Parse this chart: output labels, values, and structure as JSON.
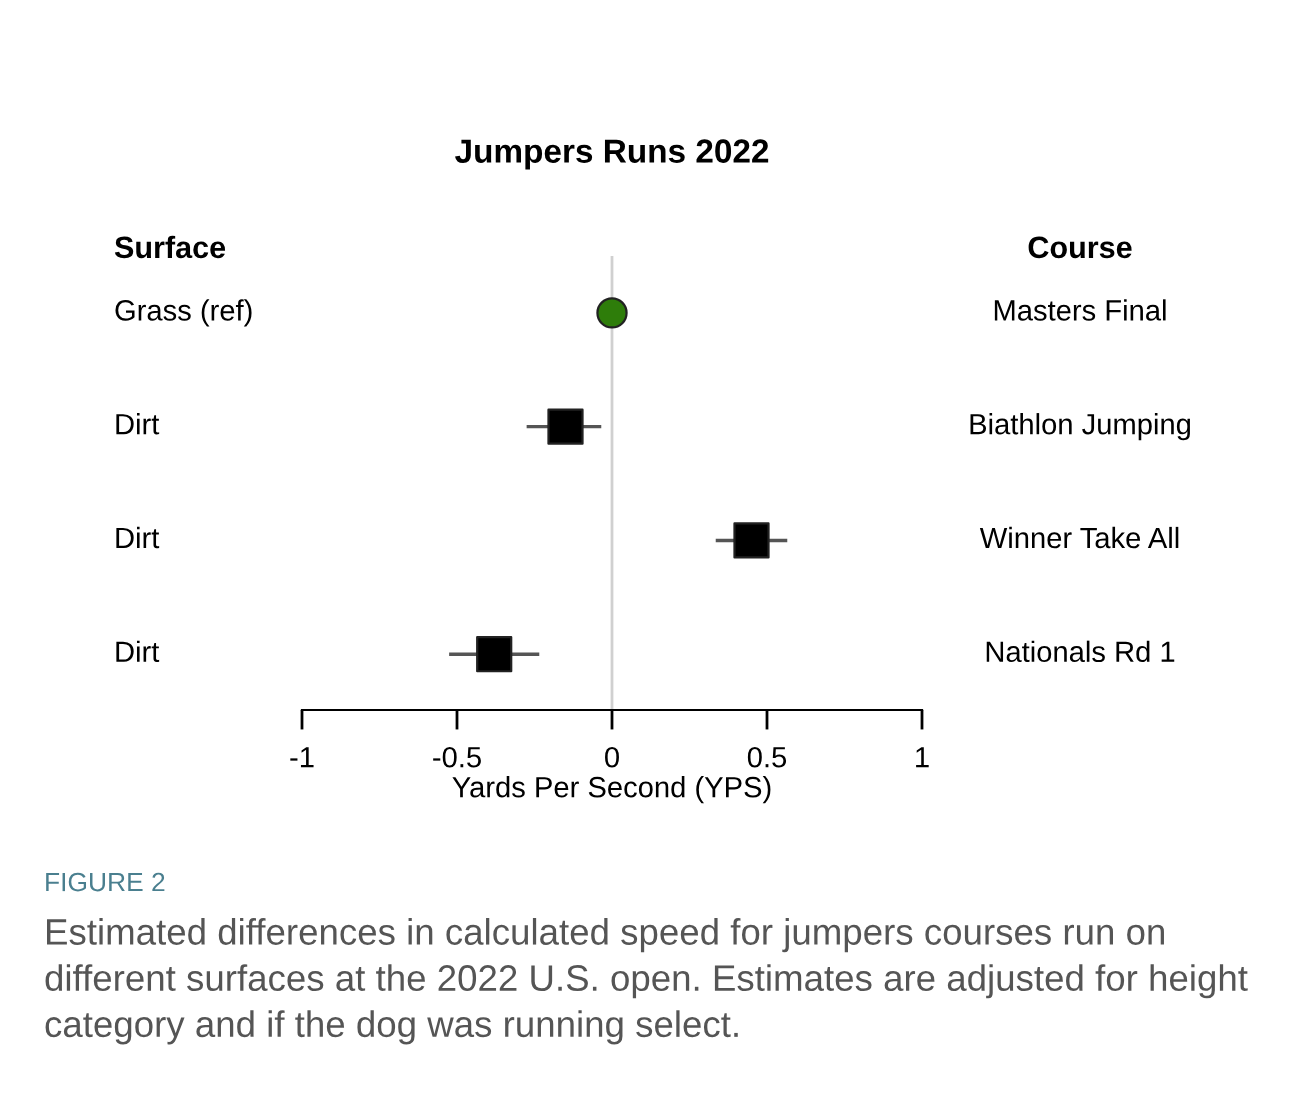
{
  "chart_data": {
    "type": "scatter",
    "title": "Jumpers Runs 2022",
    "xlabel": "Yards Per Second (YPS)",
    "orientation": "horizontal",
    "categories": [
      "Grass (ref)",
      "Dirt",
      "Dirt",
      "Dirt"
    ],
    "y2_categories": [
      "Masters Final",
      "Biathlon Jumping",
      "Winner Take All",
      "Nationals Rd 1"
    ],
    "series": [
      {
        "color": "#2e7d0a",
        "marker": "circle",
        "values": [
          0,
          null,
          null,
          null
        ]
      },
      {
        "color": "#000000",
        "marker": "square",
        "values": [
          null,
          -0.15,
          0.45,
          -0.38
        ],
        "errors": [
          null,
          [
            -0.27,
            -0.04
          ],
          [
            0.34,
            0.56
          ],
          [
            -0.52,
            -0.24
          ]
        ]
      }
    ],
    "xlim": [
      -1,
      1
    ],
    "xticks": [
      -1,
      -0.5,
      0,
      0.5,
      1
    ],
    "ref_lines": [
      {
        "axis": "x",
        "value": 0,
        "color": "#d0d0d0"
      }
    ],
    "tick_labels": "x",
    "grid": false,
    "annotations": [
      "Surface",
      "Course",
      "FIGURE 2",
      "Estimated differences in calculated speed for jumpers courses run on different surfaces at the 2022 U.S. open. Estimates are adjusted for height category and if the dog was running select."
    ]
  }
}
